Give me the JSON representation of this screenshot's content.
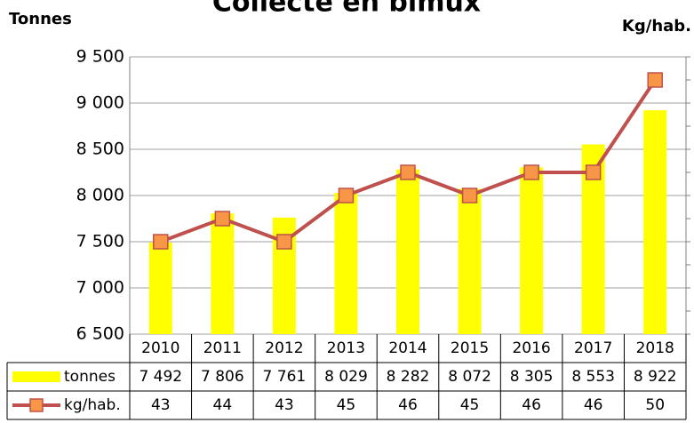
{
  "chart_data": {
    "type": "bar-line",
    "title": "Collecte en bimux",
    "y_label": "Tonnes",
    "y2_label": "Kg/hab.",
    "categories": [
      "2010",
      "2011",
      "2012",
      "2013",
      "2014",
      "2015",
      "2016",
      "2017",
      "2018"
    ],
    "series": [
      {
        "name": "tonnes",
        "color": "#ffff00",
        "values": [
          7492,
          7806,
          7761,
          8029,
          8282,
          8072,
          8305,
          8553,
          8922
        ],
        "value_labels": [
          "7 492",
          "7 806",
          "7 761",
          "8 029",
          "8 282",
          "8 072",
          "8 305",
          "8 553",
          "8 922"
        ]
      },
      {
        "name": "kg/hab.",
        "color": "#c0504d",
        "marker_color": "#f79646",
        "axis": "y2",
        "values": [
          43,
          44,
          43,
          45,
          46,
          45,
          46,
          46,
          50
        ]
      }
    ],
    "ylim": [
      6500,
      9500
    ],
    "yticks": [
      {
        "value": 6500,
        "label": "6 500"
      },
      {
        "value": 7000,
        "label": "7 000"
      },
      {
        "value": 7500,
        "label": "7 500"
      },
      {
        "value": 8000,
        "label": "8 000"
      },
      {
        "value": 8500,
        "label": "8 500"
      },
      {
        "value": 9000,
        "label": "9 000"
      },
      {
        "value": 9500,
        "label": "9 500"
      }
    ],
    "y2lim": [
      39,
      51
    ],
    "y2ticks": [
      39,
      40,
      41,
      42,
      43,
      44,
      45,
      46,
      47,
      48,
      49,
      50,
      51
    ],
    "grid": true
  }
}
